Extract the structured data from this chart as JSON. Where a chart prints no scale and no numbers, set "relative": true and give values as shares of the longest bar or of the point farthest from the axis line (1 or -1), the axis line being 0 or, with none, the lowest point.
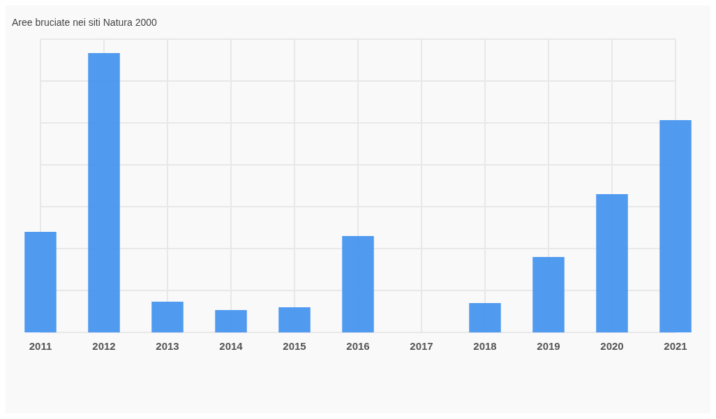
{
  "chart_data": {
    "type": "bar",
    "title": "Aree bruciate nei siti Natura 2000",
    "categories": [
      "2011",
      "2012",
      "2013",
      "2014",
      "2015",
      "2016",
      "2017",
      "2018",
      "2019",
      "2020",
      "2021"
    ],
    "values": [
      0.36,
      1,
      0.11,
      0.08,
      0.09,
      0.345,
      0,
      0.105,
      0.27,
      0.495,
      0.76
    ],
    "color": "#4795ef",
    "relative": true,
    "grid": true
  }
}
